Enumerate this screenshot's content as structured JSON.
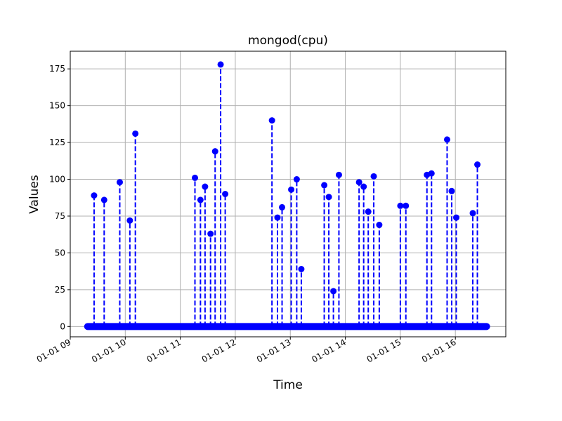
{
  "chart_data": {
    "type": "stem",
    "title": "mongod(cpu)",
    "xlabel": "Time",
    "ylabel": "Values",
    "color": "#0000ff",
    "grid": true,
    "ylim": [
      -7,
      187
    ],
    "xlim": [
      "01-01 09:00",
      "01-01 16:55"
    ],
    "yticks": [
      0,
      25,
      50,
      75,
      100,
      125,
      150,
      175
    ],
    "ytick_labels": [
      "0",
      "25",
      "50",
      "75",
      "100",
      "125",
      "150",
      "175"
    ],
    "xticks": [
      "01-01 09:00",
      "01-01 10:00",
      "01-01 11:00",
      "01-01 12:00",
      "01-01 13:00",
      "01-01 14:00",
      "01-01 15:00",
      "01-01 16:00"
    ],
    "xtick_labels": [
      "01-01 09",
      "01-01 10",
      "01-01 11",
      "01-01 12",
      "01-01 13",
      "01-01 14",
      "01-01 15",
      "01-01 16"
    ],
    "baseline_range": [
      "01-01 09:19",
      "01-01 16:34"
    ],
    "points": [
      {
        "x": "01-01 09:26",
        "y": 89
      },
      {
        "x": "01-01 09:37",
        "y": 86
      },
      {
        "x": "01-01 09:54",
        "y": 98
      },
      {
        "x": "01-01 10:05",
        "y": 72
      },
      {
        "x": "01-01 10:11",
        "y": 131
      },
      {
        "x": "01-01 11:16",
        "y": 101
      },
      {
        "x": "01-01 11:22",
        "y": 86
      },
      {
        "x": "01-01 11:27",
        "y": 95
      },
      {
        "x": "01-01 11:33",
        "y": 63
      },
      {
        "x": "01-01 11:38",
        "y": 119
      },
      {
        "x": "01-01 11:44",
        "y": 178
      },
      {
        "x": "01-01 11:49",
        "y": 90
      },
      {
        "x": "01-01 12:40",
        "y": 140
      },
      {
        "x": "01-01 12:46",
        "y": 74
      },
      {
        "x": "01-01 12:51",
        "y": 81
      },
      {
        "x": "01-01 13:01",
        "y": 93
      },
      {
        "x": "01-01 13:07",
        "y": 100
      },
      {
        "x": "01-01 13:12",
        "y": 39
      },
      {
        "x": "01-01 13:37",
        "y": 96
      },
      {
        "x": "01-01 13:42",
        "y": 88
      },
      {
        "x": "01-01 13:47",
        "y": 24
      },
      {
        "x": "01-01 13:53",
        "y": 103
      },
      {
        "x": "01-01 14:15",
        "y": 98
      },
      {
        "x": "01-01 14:20",
        "y": 95
      },
      {
        "x": "01-01 14:25",
        "y": 78
      },
      {
        "x": "01-01 14:31",
        "y": 102
      },
      {
        "x": "01-01 14:37",
        "y": 69
      },
      {
        "x": "01-01 15:00",
        "y": 82
      },
      {
        "x": "01-01 15:06",
        "y": 82
      },
      {
        "x": "01-01 15:29",
        "y": 103
      },
      {
        "x": "01-01 15:34",
        "y": 104
      },
      {
        "x": "01-01 15:51",
        "y": 127
      },
      {
        "x": "01-01 15:56",
        "y": 92
      },
      {
        "x": "01-01 16:01",
        "y": 74
      },
      {
        "x": "01-01 16:19",
        "y": 77
      },
      {
        "x": "01-01 16:24",
        "y": 110
      }
    ]
  }
}
